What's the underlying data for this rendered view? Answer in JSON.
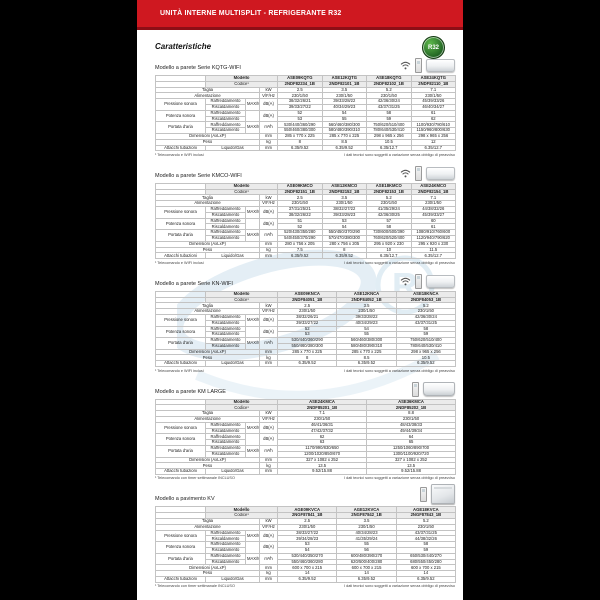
{
  "page": {
    "header_title": "UNITÀ INTERNE MULTISPLIT - REFRIGERANTE R32",
    "section_heading": "Caratteristiche",
    "badge": "R32",
    "accent_red": "#cf1820",
    "badge_green": "#2e7d32",
    "model_code_red": "#c3161c"
  },
  "labels": {
    "modello": "Modello",
    "codice": "Codice¹",
    "taglia": "Taglia",
    "alimentazione": "Alimentazione",
    "pressione_sonora": "Pressione sonora",
    "potenza_sonora": "Potenza sonora",
    "portata_aria": "Portata d'aria",
    "raffreddamento": "Raffreddamento",
    "riscaldamento": "Riscaldamento",
    "dimensioni": "Dimensioni (AxLxP)",
    "peso": "Peso",
    "attacchi": "Attacchi tubazioni",
    "liquido_gas": "Liquido/Gas",
    "qualifier": "MAX/MED/MIN/SL",
    "units": {
      "taglia": "kW",
      "alimentazione": "V/F/Hz",
      "pressione": "dB(A)",
      "potenza": "dB(A)",
      "portata": "m³/h",
      "dimensioni": "mm",
      "peso": "kg",
      "attacchi": "mm"
    }
  },
  "sections": [
    {
      "title": "Modello a parete Serie KQTG-WIFI",
      "icons": [
        "wifi",
        "remote",
        "wall"
      ],
      "models_red": [
        "ASE09KQTG",
        "ASE12KQTG",
        "ASE18KQTG",
        "ASE24KQTG"
      ],
      "models_black": [
        "2NDF82234_1B",
        "2NDF82101_1B",
        "2NDF82102_1B",
        "2NDF82110_1B"
      ],
      "rows": {
        "taglia": [
          "2.5",
          "3.5",
          "5.2",
          "7.1"
        ],
        "alimentazione": [
          "230/1/50",
          "230/1/50",
          "230/1/50",
          "230/1/50"
        ],
        "pressione_raff": [
          "38/32/26/21",
          "39/33/28/22",
          "42/36/30/24",
          "45/39/33/26"
        ],
        "pressione_risc": [
          "39/33/27/22",
          "40/34/29/23",
          "43/37/31/25",
          "46/40/34/27"
        ],
        "potenza_raff": [
          "52",
          "54",
          "58",
          "61"
        ],
        "potenza_risc": [
          "53",
          "55",
          "59",
          "62"
        ],
        "portata_raff": [
          "530/440/360/290",
          "560/460/380/300",
          "750/620/510/400",
          "1100/930/780/610"
        ],
        "portata_risc": [
          "550/460/380/300",
          "580/480/390/310",
          "780/640/530/410",
          "1150/960/800/630"
        ],
        "dimensioni": [
          "285 x 770 x 225",
          "285 x 770 x 225",
          "298 x 965 x 256",
          "298 x 965 x 256"
        ],
        "peso": [
          "8",
          "8.5",
          "10.5",
          "12"
        ],
        "attacchi": [
          "6.35/9.52",
          "6.35/9.52",
          "6.35/12.7",
          "6.35/12.7"
        ]
      },
      "footnote_left": "¹ Telecomando e WIFI inclusi",
      "footnote_right": "I dati tecnici sono soggetti a variazione senza obbligo di preavviso"
    },
    {
      "title": "Modello a parete Serie KMCO-WIFI",
      "icons": [
        "wifi",
        "remote",
        "wall"
      ],
      "models_red": [
        "ASE09KMCO",
        "ASE12KMCO",
        "ASE18KMCO",
        "ASE24KMCO"
      ],
      "models_black": [
        "2NDF82151_1B",
        "2NDF82152_1B",
        "2NDF82153_1B",
        "2NDF82154_1B"
      ],
      "rows": {
        "taglia": [
          "2.5",
          "3.5",
          "5.2",
          "7.1"
        ],
        "alimentazione": [
          "230/1/50",
          "230/1/50",
          "230/1/50",
          "230/1/50"
        ],
        "pressione_raff": [
          "37/31/25/21",
          "38/32/27/22",
          "41/35/29/24",
          "44/38/32/26"
        ],
        "pressione_risc": [
          "38/32/26/22",
          "39/33/28/23",
          "42/36/30/25",
          "45/39/33/27"
        ],
        "potenza_raff": [
          "51",
          "53",
          "57",
          "60"
        ],
        "potenza_risc": [
          "52",
          "54",
          "58",
          "61"
        ],
        "portata_raff": [
          "520/430/350/280",
          "550/450/370/290",
          "730/600/500/390",
          "1080/910/760/600"
        ],
        "portata_risc": [
          "540/450/370/290",
          "570/470/380/300",
          "760/620/520/400",
          "1120/940/790/620"
        ],
        "dimensioni": [
          "280 x 756 x 205",
          "280 x 756 x 205",
          "295 x 920 x 230",
          "295 x 920 x 230"
        ],
        "peso": [
          "7.5",
          "8",
          "10",
          "11.5"
        ],
        "attacchi": [
          "6.35/9.52",
          "6.35/9.52",
          "6.35/12.7",
          "6.35/12.7"
        ]
      },
      "footnote_left": "¹ Telecomando e WIFI inclusi",
      "footnote_right": "I dati tecnici sono soggetti a variazione senza obbligo di preavviso"
    },
    {
      "title": "Modello a parete Serie KN-WIFI",
      "icons": [
        "wifi",
        "remote",
        "wall"
      ],
      "models_red": [
        "ASE09KNCA",
        "ASE12KNCA",
        "ASE18KNCA"
      ],
      "models_black": [
        "2NDF84051_1B",
        "2NDF84052_1B",
        "2NDF84053_1B"
      ],
      "rows": {
        "taglia": [
          "2.5",
          "3.5",
          "5.2"
        ],
        "alimentazione": [
          "230/1/50",
          "230/1/50",
          "230/1/50"
        ],
        "pressione_raff": [
          "38/32/26/21",
          "39/33/28/22",
          "42/36/30/24"
        ],
        "pressione_risc": [
          "39/33/27/22",
          "40/34/29/23",
          "43/37/31/25"
        ],
        "potenza_raff": [
          "52",
          "54",
          "58"
        ],
        "potenza_risc": [
          "53",
          "55",
          "59"
        ],
        "portata_raff": [
          "530/440/360/290",
          "560/460/380/300",
          "750/620/510/400"
        ],
        "portata_risc": [
          "550/460/380/300",
          "580/480/390/310",
          "780/640/530/410"
        ],
        "dimensioni": [
          "285 x 770 x 225",
          "285 x 770 x 225",
          "298 x 965 x 256"
        ],
        "peso": [
          "8",
          "8.5",
          "10.5"
        ],
        "attacchi": [
          "6.35/9.52",
          "6.35/9.52",
          "6.35/9.52"
        ]
      },
      "footnote_left": "¹ Telecomando e WIFI inclusi",
      "footnote_right": "I dati tecnici sono soggetti a variazione senza obbligo di preavviso"
    },
    {
      "title": "Modello a parete KM LARGE",
      "icons": [
        "remote",
        "wall-large"
      ],
      "models_red": [
        "ASE24KMCA",
        "ASE36KMCA"
      ],
      "models_black": [
        "2NDF85201_1B",
        "2NDF85202_1B"
      ],
      "rows": {
        "taglia": [
          "7.1",
          "8.8"
        ],
        "alimentazione": [
          "230/1/50",
          "230/1/50"
        ],
        "pressione_raff": [
          "46/41/36/31",
          "48/43/38/33"
        ],
        "pressione_risc": [
          "47/42/37/32",
          "49/44/39/34"
        ],
        "potenza_raff": [
          "62",
          "64"
        ],
        "potenza_risc": [
          "63",
          "65"
        ],
        "portata_raff": [
          "1170/990/830/650",
          "1250/1060/890/700"
        ],
        "portata_risc": [
          "1200/1020/850/670",
          "1300/1100/920/720"
        ],
        "dimensioni": [
          "327 x 1082 x 252",
          "327 x 1082 x 252"
        ],
        "peso": [
          "13.5",
          "13.5"
        ],
        "attacchi": [
          "9.52/15.88",
          "9.52/15.88"
        ]
      },
      "footnote_left": "¹ Telecomando con timer settimanale INCLUSO",
      "footnote_right": "I dati tecnici sono soggetti a variazione senza obbligo di preavviso"
    },
    {
      "title": "Modello a pavimento KV",
      "icons": [
        "remote",
        "floor"
      ],
      "models_red": [
        "AGE09KVCA",
        "AGE12KVCA",
        "AGE18KVCA"
      ],
      "models_black": [
        "2NGF87841_1B",
        "2NGF87842_1B",
        "2NGF87843_1B"
      ],
      "rows": {
        "taglia": [
          "2.5",
          "3.5",
          "5.2"
        ],
        "alimentazione": [
          "230/1/50",
          "230/1/50",
          "230/1/50"
        ],
        "pressione_raff": [
          "38/33/27/22",
          "40/34/28/23",
          "43/37/31/25"
        ],
        "pressione_risc": [
          "39/34/28/23",
          "41/35/29/24",
          "44/38/32/26"
        ],
        "potenza_raff": [
          "53",
          "55",
          "58"
        ],
        "potenza_risc": [
          "54",
          "56",
          "59"
        ],
        "portata_raff": [
          "530/440/350/270",
          "600/480/390/270",
          "650/530/440/270"
        ],
        "portata_risc": [
          "550/460/360/280",
          "620/500/400/280",
          "680/550/450/280"
        ],
        "dimensioni": [
          "600 x 700 x 215",
          "600 x 700 x 215",
          "600 x 700 x 215"
        ],
        "peso": [
          "14",
          "14",
          "14"
        ],
        "attacchi": [
          "6.35/9.52",
          "6.35/9.52",
          "6.35/9.52"
        ]
      },
      "footnote_left": "¹ Telecomando con timer settimanale INCLUSO",
      "footnote_right": "I dati tecnici sono soggetti a variazione senza obbligo di preavviso"
    }
  ]
}
